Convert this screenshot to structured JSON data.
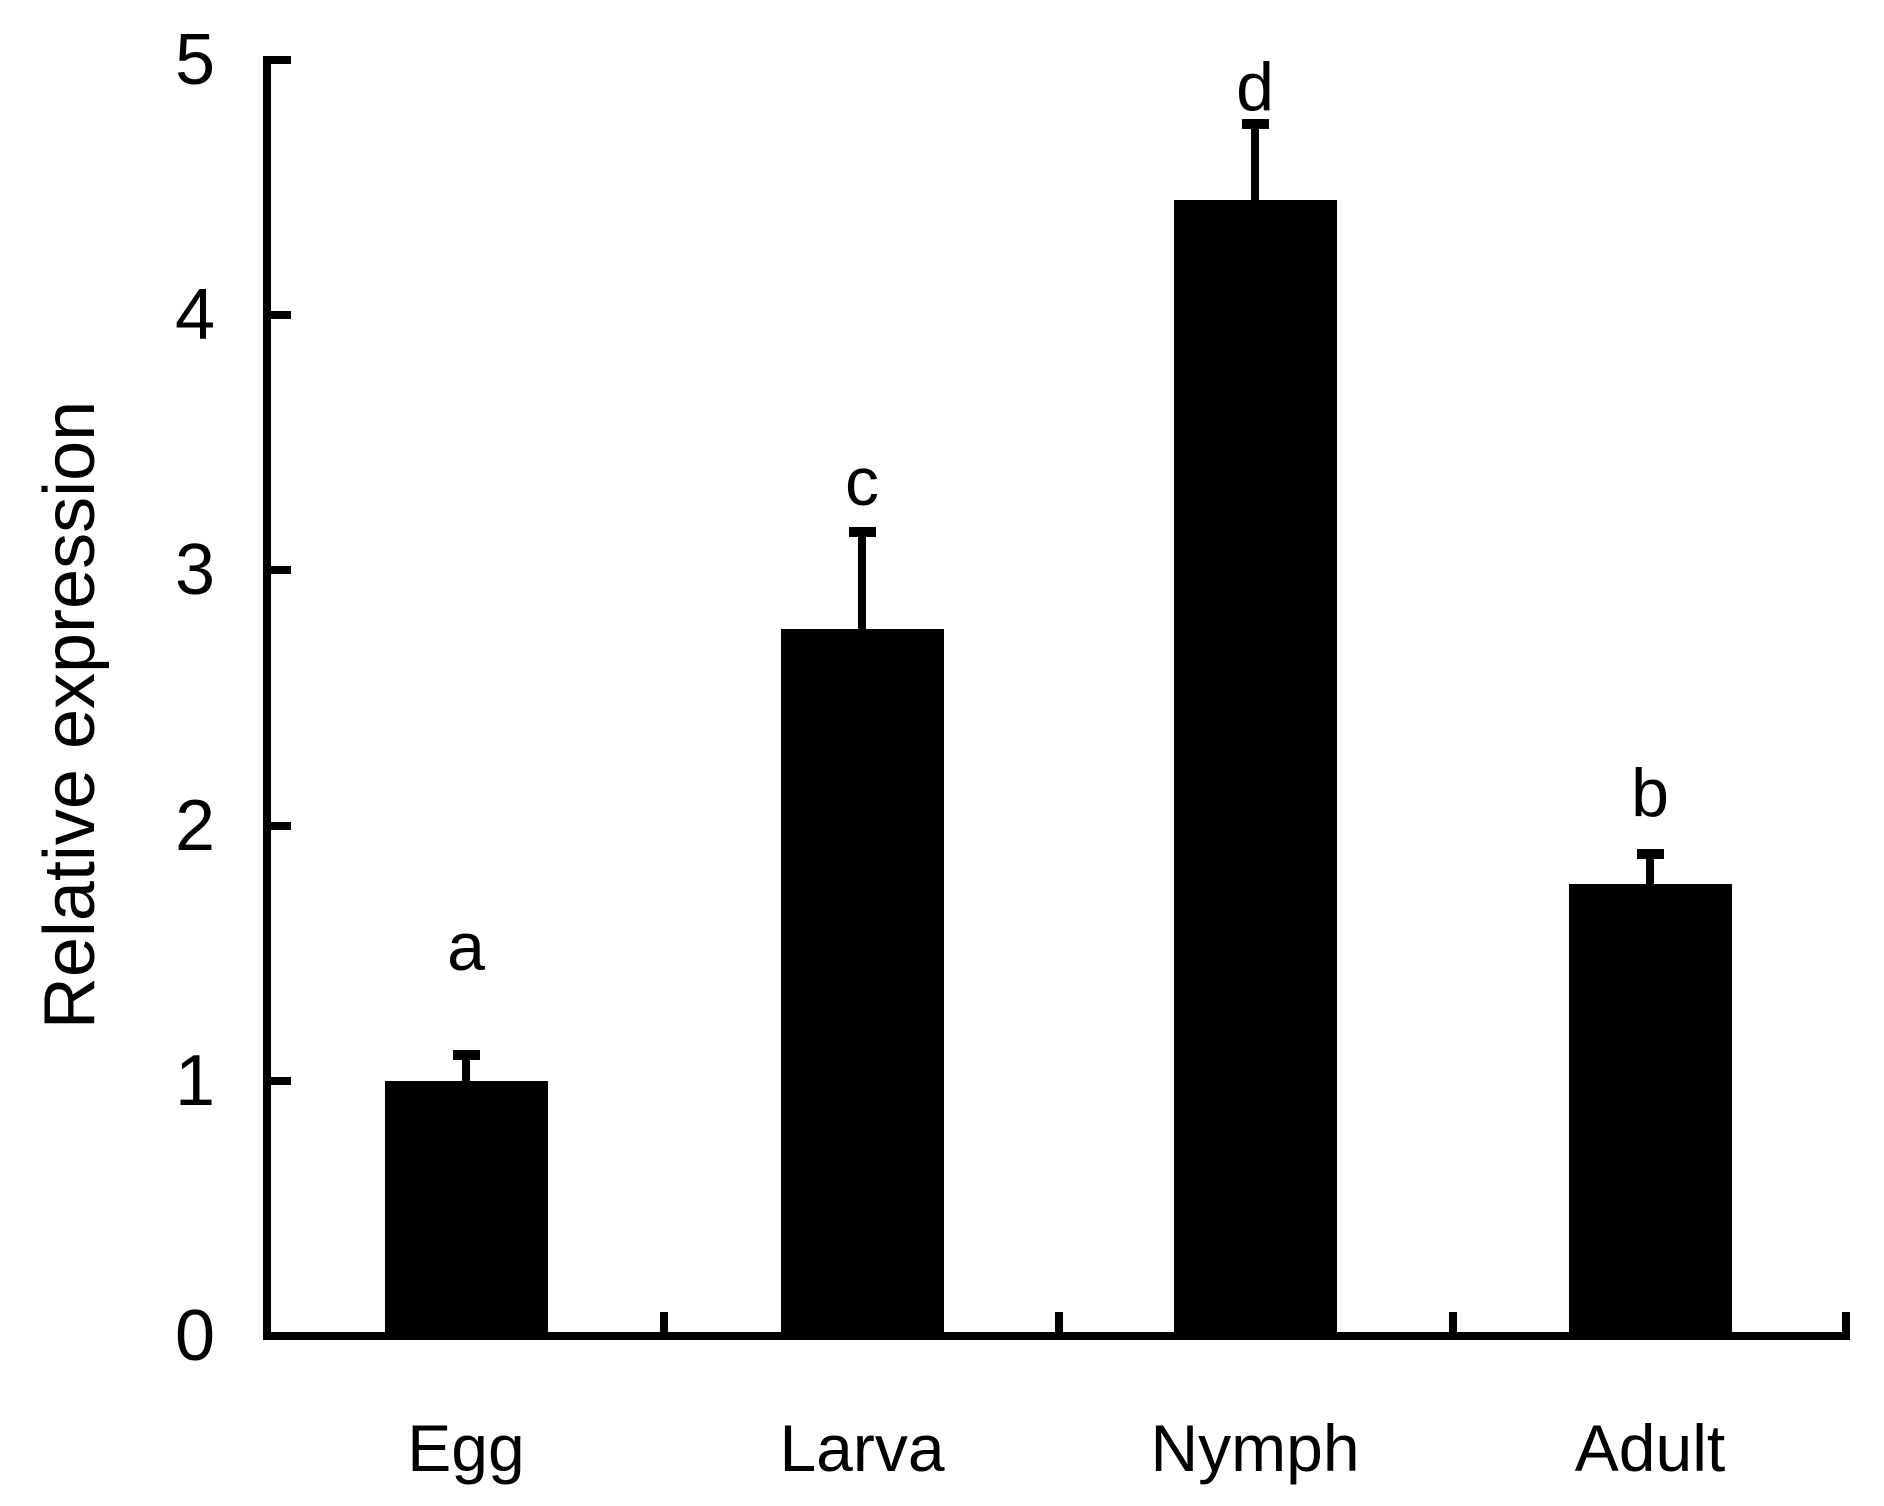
{
  "figure": {
    "background": "#ffffff",
    "ink": "#000000"
  },
  "chart_data": {
    "type": "bar",
    "title": "",
    "xlabel": "",
    "ylabel": "Relative expression",
    "categories": [
      "Egg",
      "Larva",
      "Nymph",
      "Adult"
    ],
    "values": [
      1.0,
      2.77,
      4.45,
      1.77
    ],
    "errors_plus": [
      0.1,
      0.38,
      0.3,
      0.12
    ],
    "sig_letters": [
      "a",
      "c",
      "d",
      "b"
    ],
    "ylim": [
      0,
      5
    ],
    "yticks": [
      0,
      1,
      2,
      3,
      4,
      5
    ],
    "grid": false,
    "legend": "none",
    "bar_color": "#000000",
    "error_bar_style": "upper-only-with-cap"
  }
}
